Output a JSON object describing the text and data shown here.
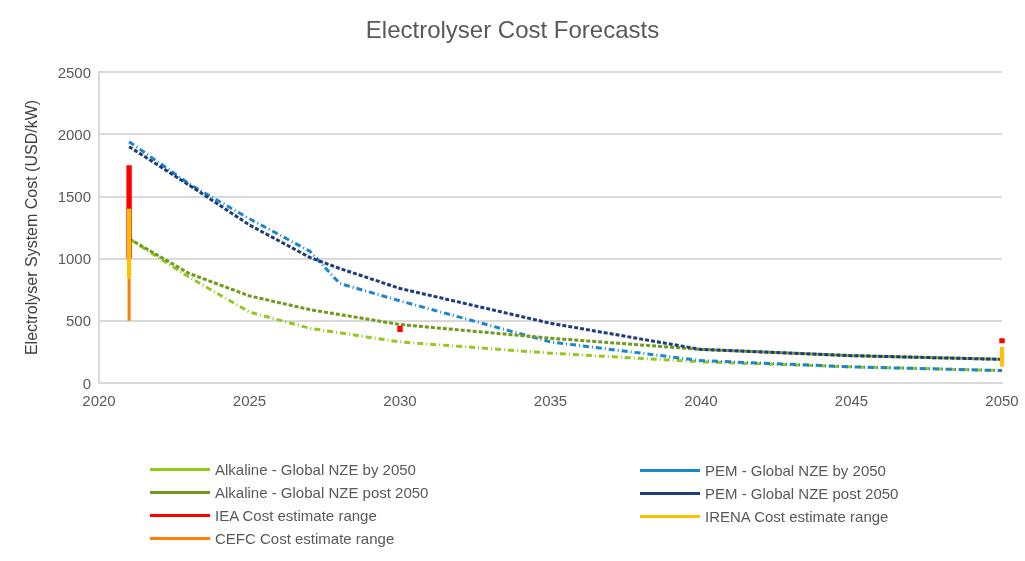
{
  "chart_data": {
    "type": "line",
    "title": "Electrolyser Cost Forecasts",
    "ylabel": "Electrolyser System Cost (USD/kW)",
    "xlim": [
      2020,
      2050
    ],
    "xticks": [
      2020,
      2025,
      2030,
      2035,
      2040,
      2045,
      2050
    ],
    "ylim": [
      0,
      2500
    ],
    "yticks": [
      0,
      500,
      1000,
      1500,
      2000,
      2500
    ],
    "grid": "y",
    "legend": "bottom",
    "marker": "none",
    "series": [
      {
        "name": "Alkaline - Global NZE by 2050",
        "color": "#92c91e",
        "line_style": "dashdot",
        "x": [
          2021,
          2023,
          2025,
          2027,
          2030,
          2035,
          2040,
          2045,
          2050
        ],
        "values": [
          1160,
          850,
          570,
          440,
          330,
          240,
          170,
          130,
          100
        ]
      },
      {
        "name": "PEM - Global NZE by 2050",
        "color": "#1a86d0",
        "line_style": "dashdot",
        "x": [
          2021,
          2023,
          2025,
          2027,
          2028,
          2030,
          2035,
          2040,
          2045,
          2050
        ],
        "values": [
          1940,
          1600,
          1320,
          1060,
          800,
          660,
          330,
          180,
          130,
          100
        ]
      },
      {
        "name": "Alkaline - Global NZE post 2050",
        "color": "#6f9a1a",
        "line_style": "dashed",
        "x": [
          2021,
          2023,
          2025,
          2027,
          2030,
          2035,
          2040,
          2045,
          2050
        ],
        "values": [
          1160,
          880,
          700,
          590,
          470,
          360,
          270,
          220,
          190
        ]
      },
      {
        "name": "PEM - Global NZE post 2050",
        "color": "#1f3d7a",
        "line_style": "dashed",
        "x": [
          2021,
          2023,
          2025,
          2027,
          2028,
          2030,
          2035,
          2040,
          2045,
          2050
        ],
        "values": [
          1900,
          1590,
          1270,
          1010,
          920,
          760,
          480,
          270,
          220,
          190
        ]
      },
      {
        "name": "IEA Cost estimate range",
        "color": "#ff0000",
        "line_style": "solid",
        "x": [
          2021,
          2021,
          2025,
          2030,
          2030,
          2040,
          2050,
          2050
        ],
        "values": [
          1000,
          1750,
          null,
          410,
          460,
          null,
          320,
          360
        ]
      },
      {
        "name": "IRENA Cost estimate range",
        "color": "#ffc000",
        "line_style": "solid",
        "x": [
          2021,
          2021,
          2035,
          2050,
          2050
        ],
        "values": [
          840,
          1400,
          null,
          130,
          290
        ]
      },
      {
        "name": "CEFC Cost estimate range",
        "color": "#ff8000",
        "line_style": "solid",
        "x": [
          2021,
          2021
        ],
        "values": [
          500,
          840
        ]
      }
    ]
  }
}
